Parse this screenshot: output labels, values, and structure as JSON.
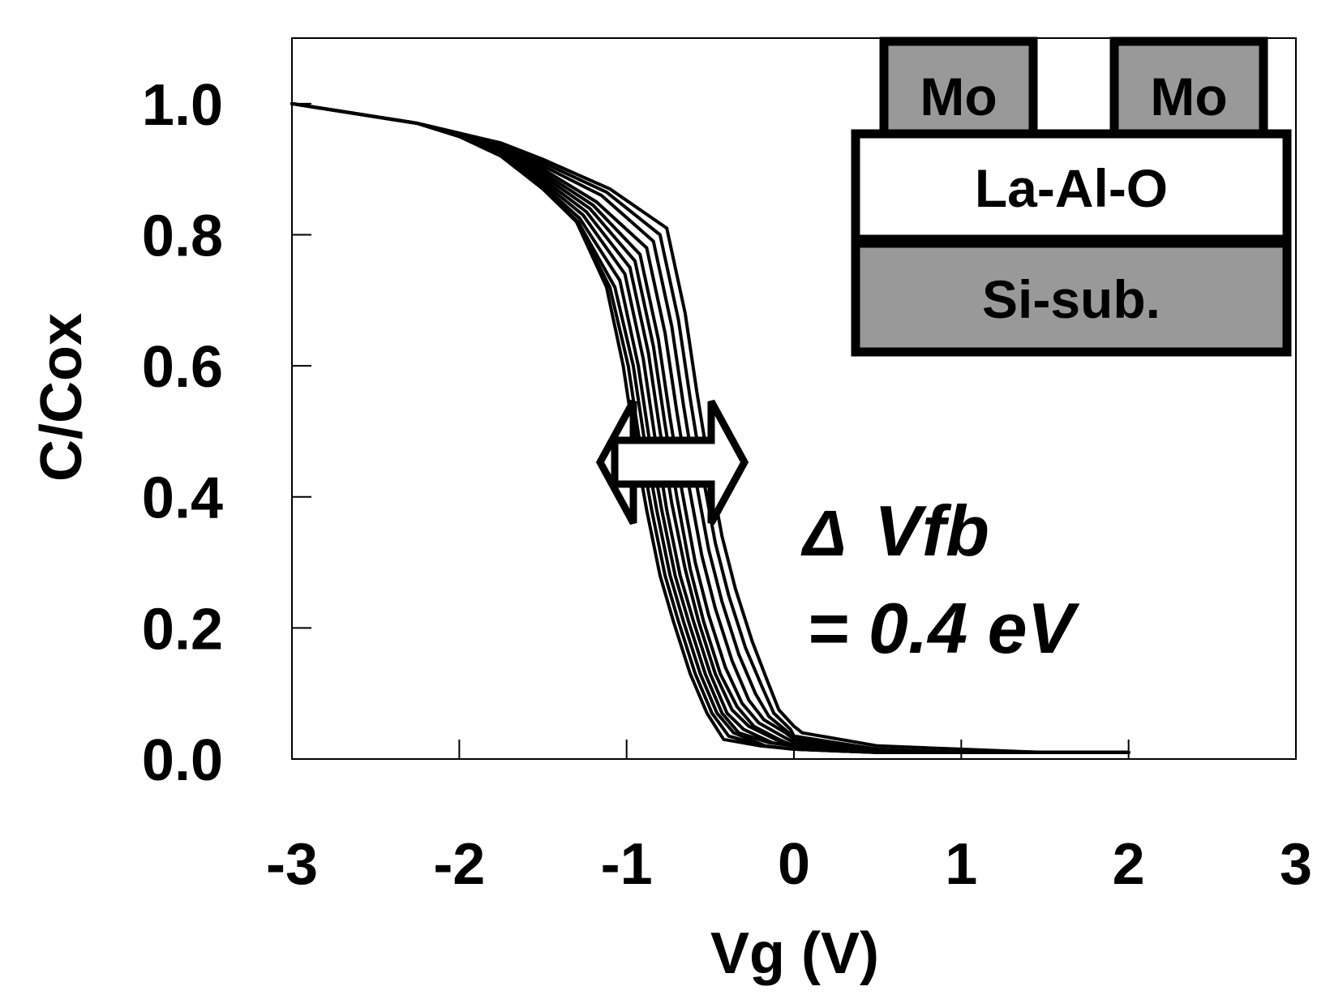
{
  "chart_data": {
    "type": "line",
    "xlabel": "Vg (V)",
    "ylabel": "C/Cox",
    "xlim": [
      -3,
      3
    ],
    "ylim": [
      0,
      1.1
    ],
    "x_ticks": [
      "-3",
      "-2",
      "-1",
      "0",
      "1",
      "2",
      "3"
    ],
    "y_ticks": [
      "0.0",
      "0.2",
      "0.4",
      "0.6",
      "0.8",
      "1.0"
    ],
    "grid": false,
    "legend": "none",
    "series": [
      {
        "x": [
          -3,
          -2.75,
          -2.5,
          -2.25,
          -2.0,
          -1.75,
          -1.5,
          -1.3,
          -1.12,
          -1.02,
          -0.95,
          -0.88,
          -0.8,
          -0.72,
          -0.62,
          -0.52,
          -0.42,
          -0.2,
          0.0,
          0.5,
          1.0,
          1.5,
          2.0
        ],
        "y": [
          1.0,
          0.99,
          0.98,
          0.97,
          0.95,
          0.92,
          0.87,
          0.82,
          0.72,
          0.6,
          0.48,
          0.38,
          0.28,
          0.21,
          0.13,
          0.07,
          0.03,
          0.02,
          0.015,
          0.01,
          0.01,
          0.01,
          0.01
        ]
      },
      {
        "x": [
          -3,
          -2.75,
          -2.5,
          -2.25,
          -2.0,
          -1.75,
          -1.5,
          -1.3,
          -1.1,
          -0.99,
          -0.92,
          -0.85,
          -0.77,
          -0.69,
          -0.59,
          -0.49,
          -0.39,
          -0.18,
          0.0,
          0.5,
          1.0,
          1.5,
          2.0
        ],
        "y": [
          1.0,
          0.99,
          0.98,
          0.97,
          0.95,
          0.92,
          0.87,
          0.82,
          0.72,
          0.6,
          0.48,
          0.38,
          0.28,
          0.21,
          0.13,
          0.07,
          0.035,
          0.02,
          0.015,
          0.01,
          0.01,
          0.01,
          0.01
        ]
      },
      {
        "x": [
          -3,
          -2.75,
          -2.5,
          -2.25,
          -2.0,
          -1.75,
          -1.5,
          -1.29,
          -1.07,
          -0.96,
          -0.89,
          -0.82,
          -0.74,
          -0.66,
          -0.56,
          -0.46,
          -0.36,
          -0.17,
          0.0,
          0.5,
          1.0,
          1.5,
          2.0
        ],
        "y": [
          1.0,
          0.99,
          0.98,
          0.97,
          0.95,
          0.92,
          0.87,
          0.82,
          0.72,
          0.6,
          0.48,
          0.38,
          0.28,
          0.21,
          0.13,
          0.07,
          0.04,
          0.02,
          0.015,
          0.01,
          0.01,
          0.01,
          0.01
        ]
      },
      {
        "x": [
          -3,
          -2.75,
          -2.5,
          -2.25,
          -2.0,
          -1.75,
          -1.5,
          -1.28,
          -1.04,
          -0.93,
          -0.86,
          -0.79,
          -0.71,
          -0.63,
          -0.53,
          -0.43,
          -0.33,
          -0.15,
          0.0,
          0.5,
          1.0,
          1.5,
          2.0
        ],
        "y": [
          1.0,
          0.99,
          0.98,
          0.97,
          0.95,
          0.92,
          0.875,
          0.825,
          0.73,
          0.6,
          0.48,
          0.38,
          0.28,
          0.21,
          0.13,
          0.07,
          0.04,
          0.025,
          0.02,
          0.01,
          0.01,
          0.01,
          0.01
        ]
      },
      {
        "x": [
          -3,
          -2.75,
          -2.5,
          -2.25,
          -2.0,
          -1.75,
          -1.5,
          -1.26,
          -1.01,
          -0.9,
          -0.83,
          -0.76,
          -0.68,
          -0.6,
          -0.5,
          -0.4,
          -0.3,
          -0.13,
          0.0,
          0.5,
          1.0,
          1.5,
          2.0
        ],
        "y": [
          1.0,
          0.99,
          0.98,
          0.97,
          0.95,
          0.925,
          0.88,
          0.83,
          0.74,
          0.61,
          0.49,
          0.38,
          0.28,
          0.21,
          0.13,
          0.07,
          0.045,
          0.025,
          0.02,
          0.01,
          0.01,
          0.01,
          0.01
        ]
      },
      {
        "x": [
          -3,
          -2.75,
          -2.5,
          -2.25,
          -2.0,
          -1.75,
          -1.5,
          -1.24,
          -0.98,
          -0.87,
          -0.8,
          -0.73,
          -0.65,
          -0.57,
          -0.47,
          -0.37,
          -0.27,
          -0.11,
          0.0,
          0.5,
          1.0,
          1.5,
          2.0
        ],
        "y": [
          1.0,
          0.99,
          0.98,
          0.97,
          0.95,
          0.925,
          0.885,
          0.835,
          0.75,
          0.62,
          0.5,
          0.39,
          0.29,
          0.21,
          0.13,
          0.075,
          0.05,
          0.03,
          0.02,
          0.01,
          0.01,
          0.01,
          0.01
        ]
      },
      {
        "x": [
          -3,
          -2.75,
          -2.5,
          -2.25,
          -2.0,
          -1.75,
          -1.5,
          -1.22,
          -0.95,
          -0.84,
          -0.77,
          -0.7,
          -0.62,
          -0.54,
          -0.44,
          -0.34,
          -0.24,
          -0.09,
          0.0,
          0.5,
          1.0,
          1.5,
          2.0
        ],
        "y": [
          1.0,
          0.99,
          0.98,
          0.97,
          0.95,
          0.93,
          0.89,
          0.84,
          0.76,
          0.63,
          0.51,
          0.4,
          0.29,
          0.21,
          0.13,
          0.08,
          0.05,
          0.03,
          0.02,
          0.01,
          0.01,
          0.01,
          0.01
        ]
      },
      {
        "x": [
          -3,
          -2.75,
          -2.5,
          -2.25,
          -2.0,
          -1.75,
          -1.5,
          -1.2,
          -0.92,
          -0.81,
          -0.74,
          -0.67,
          -0.59,
          -0.51,
          -0.41,
          -0.31,
          -0.21,
          -0.07,
          0.0,
          0.5,
          1.0,
          1.5,
          2.0
        ],
        "y": [
          1.0,
          0.99,
          0.98,
          0.97,
          0.95,
          0.93,
          0.895,
          0.845,
          0.77,
          0.64,
          0.52,
          0.41,
          0.3,
          0.22,
          0.14,
          0.085,
          0.055,
          0.035,
          0.025,
          0.01,
          0.01,
          0.01,
          0.01
        ]
      },
      {
        "x": [
          -3,
          -2.75,
          -2.5,
          -2.25,
          -2.0,
          -1.75,
          -1.5,
          -1.18,
          -0.88,
          -0.77,
          -0.7,
          -0.63,
          -0.55,
          -0.47,
          -0.37,
          -0.27,
          -0.18,
          -0.05,
          0.0,
          0.5,
          1.0,
          1.5,
          2.0
        ],
        "y": [
          1.0,
          0.99,
          0.98,
          0.97,
          0.95,
          0.93,
          0.9,
          0.85,
          0.78,
          0.65,
          0.53,
          0.42,
          0.31,
          0.23,
          0.15,
          0.09,
          0.06,
          0.04,
          0.03,
          0.01,
          0.01,
          0.01,
          0.01
        ]
      },
      {
        "x": [
          -3,
          -2.75,
          -2.5,
          -2.25,
          -2.0,
          -1.75,
          -1.5,
          -1.15,
          -0.84,
          -0.73,
          -0.66,
          -0.59,
          -0.51,
          -0.43,
          -0.33,
          -0.23,
          -0.15,
          -0.03,
          0.0,
          0.5,
          1.0,
          1.5,
          2.0
        ],
        "y": [
          1.0,
          0.99,
          0.98,
          0.97,
          0.95,
          0.935,
          0.905,
          0.86,
          0.79,
          0.66,
          0.54,
          0.43,
          0.32,
          0.24,
          0.16,
          0.1,
          0.065,
          0.04,
          0.03,
          0.015,
          0.01,
          0.01,
          0.01
        ]
      },
      {
        "x": [
          -3,
          -2.75,
          -2.5,
          -2.25,
          -2.0,
          -1.75,
          -1.5,
          -1.12,
          -0.8,
          -0.69,
          -0.62,
          -0.55,
          -0.47,
          -0.39,
          -0.29,
          -0.19,
          -0.12,
          -0.02,
          0.0,
          0.5,
          1.0,
          1.5,
          2.0
        ],
        "y": [
          1.0,
          0.99,
          0.98,
          0.97,
          0.955,
          0.935,
          0.91,
          0.865,
          0.8,
          0.67,
          0.55,
          0.44,
          0.33,
          0.25,
          0.17,
          0.11,
          0.07,
          0.045,
          0.035,
          0.015,
          0.01,
          0.01,
          0.01
        ]
      },
      {
        "x": [
          -3,
          -2.75,
          -2.5,
          -2.25,
          -2.0,
          -1.75,
          -1.5,
          -1.1,
          -0.76,
          -0.65,
          -0.58,
          -0.51,
          -0.43,
          -0.35,
          -0.25,
          -0.16,
          -0.09,
          0.0,
          0.05,
          0.5,
          1.0,
          1.5,
          2.0
        ],
        "y": [
          1.0,
          0.99,
          0.98,
          0.97,
          0.955,
          0.94,
          0.915,
          0.87,
          0.81,
          0.68,
          0.56,
          0.45,
          0.34,
          0.26,
          0.18,
          0.12,
          0.075,
          0.05,
          0.04,
          0.02,
          0.015,
          0.01,
          0.01
        ]
      }
    ]
  },
  "annotation": {
    "delta_symbol": "Δ",
    "delta_label": "Vfb",
    "value": "= 0.4 eV"
  },
  "inset": {
    "gate_left": "Mo",
    "gate_right": "Mo",
    "oxide": "La-Al-O",
    "substrate": "Si-sub.",
    "colors": {
      "metal": "#999999",
      "oxide": "#ffffff",
      "substrate": "#999999",
      "outline": "#000000"
    }
  }
}
